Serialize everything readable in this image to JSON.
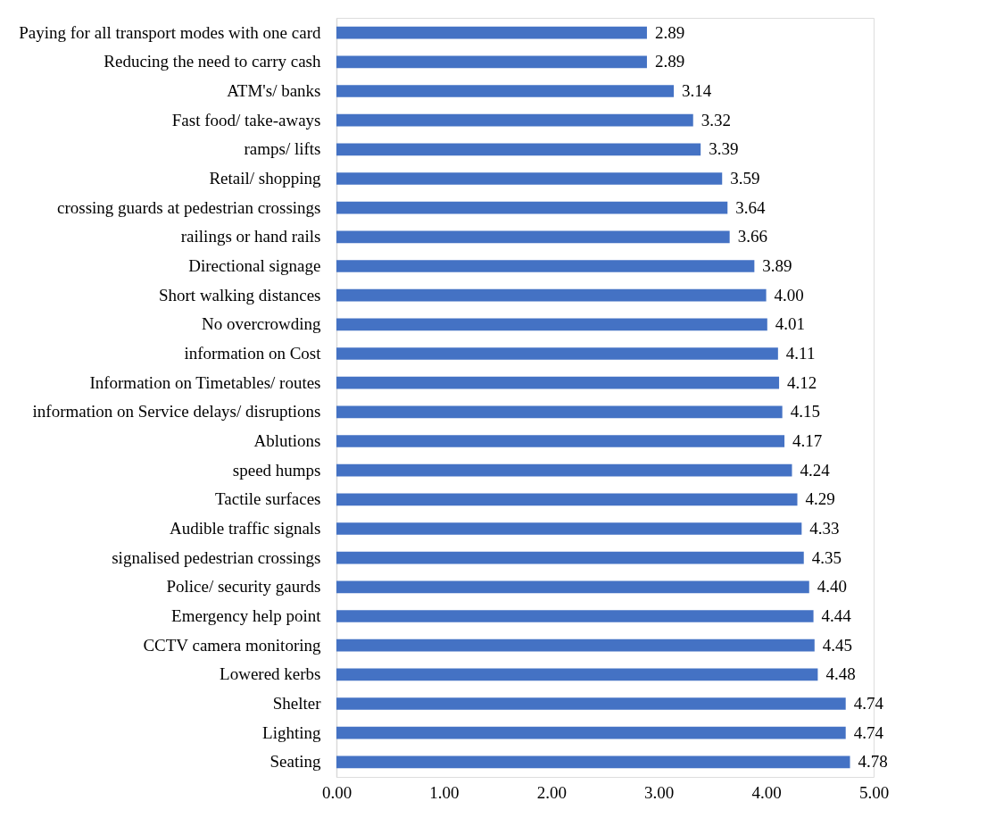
{
  "chart_data": {
    "type": "bar",
    "orientation": "horizontal",
    "categories": [
      "Paying for all transport modes with one card",
      "Reducing the need to carry cash ",
      "ATM's/ banks",
      "Fast food/ take-aways ",
      "ramps/ lifts",
      "Retail/ shopping",
      "crossing guards at pedestrian crossings",
      "railings or hand rails",
      "Directional signage ",
      "Short walking distances",
      "No overcrowding",
      "information on Cost",
      "Information on Timetables/ routes",
      "information on Service delays/ disruptions",
      "Ablutions",
      "speed humps ",
      "Tactile surfaces",
      "Audible traffic signals ",
      "signalised pedestrian crossings",
      "Police/ security gaurds",
      "Emergency help point",
      "CCTV camera monitoring",
      "Lowered kerbs",
      "Shelter",
      "Lighting",
      "Seating"
    ],
    "values": [
      2.89,
      2.89,
      3.14,
      3.32,
      3.39,
      3.59,
      3.64,
      3.66,
      3.89,
      4.0,
      4.01,
      4.11,
      4.12,
      4.15,
      4.17,
      4.24,
      4.29,
      4.33,
      4.35,
      4.4,
      4.44,
      4.45,
      4.48,
      4.74,
      4.74,
      4.78
    ],
    "value_labels": [
      "2.89",
      "2.89",
      "3.14",
      "3.32",
      "3.39",
      "3.59",
      "3.64",
      "3.66",
      "3.89",
      "4.00",
      "4.01",
      "4.11",
      "4.12",
      "4.15",
      "4.17",
      "4.24",
      "4.29",
      "4.33",
      "4.35",
      "4.40",
      "4.44",
      "4.45",
      "4.48",
      "4.74",
      "4.74",
      "4.78"
    ],
    "color": "#4472c4",
    "xlim": [
      0,
      5
    ],
    "xticks": [
      {
        "value": 0,
        "label": "0.00"
      },
      {
        "value": 1,
        "label": "1.00"
      },
      {
        "value": 2,
        "label": "2.00"
      },
      {
        "value": 3,
        "label": "3.00"
      },
      {
        "value": 4,
        "label": "4.00"
      },
      {
        "value": 5,
        "label": "5.00"
      }
    ],
    "grid": false
  }
}
